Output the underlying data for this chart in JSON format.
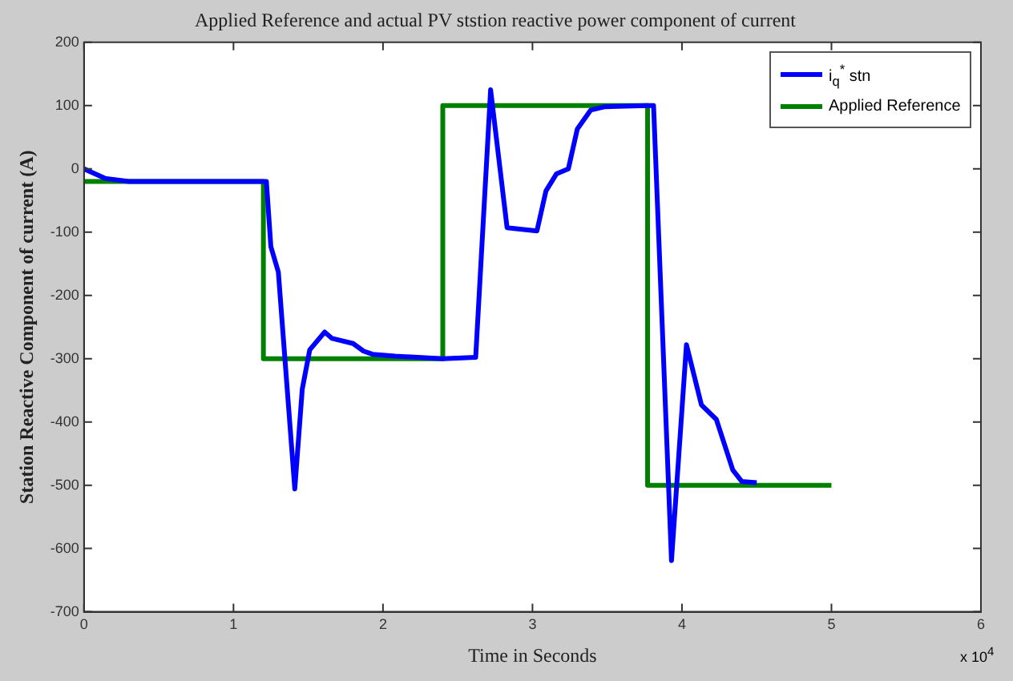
{
  "chart_data": {
    "type": "line",
    "title": "Applied Reference and actual PV ststion reactive power component of current",
    "xlabel": "Time in Seconds",
    "ylabel": "Station Reactive Component of current (A)",
    "annotations": [
      "x 10$^{4}$"
    ],
    "xlim": [
      0,
      6
    ],
    "xticks": [
      0,
      1,
      2,
      3,
      4,
      5,
      6
    ],
    "ylim": [
      -700,
      200
    ],
    "yticks": [
      -700,
      -600,
      -500,
      -400,
      -300,
      -200,
      -100,
      0,
      100,
      200
    ],
    "grid": false,
    "legend": "top right",
    "marker": "none",
    "line_style": "solid",
    "series": [
      {
        "name": "i$_{q}$$^{*}$ stn",
        "color": "#0000ff",
        "x": [
          0,
          0.14,
          0.3,
          1.2,
          1.22,
          1.25,
          1.3,
          1.41,
          1.46,
          1.51,
          1.61,
          1.66,
          1.8,
          1.87,
          1.93,
          2.08,
          2.4,
          2.62,
          2.72,
          2.83,
          3.03,
          3.09,
          3.16,
          3.24,
          3.3,
          3.39,
          3.48,
          3.77,
          3.81,
          3.93,
          4.03,
          4.13,
          4.23,
          4.34,
          4.4,
          4.5
        ],
        "values": [
          0,
          -15,
          -20,
          -20,
          -20,
          -123,
          -163,
          -506,
          -348,
          -286,
          -258,
          -268,
          -276,
          -288,
          -293,
          -296,
          -300,
          -298,
          125,
          -93,
          -98,
          -35,
          -8,
          0,
          63,
          93,
          98,
          100,
          100,
          -619,
          -278,
          -373,
          -396,
          -476,
          -494,
          -496
        ]
      },
      {
        "name": "Applied Reference",
        "color": "#008000",
        "x": [
          0,
          1.2,
          1.2,
          2.4,
          2.4,
          3.77,
          3.77,
          5
        ],
        "values": [
          -20,
          -20,
          -300,
          -300,
          100,
          100,
          -500,
          -500
        ]
      }
    ]
  }
}
